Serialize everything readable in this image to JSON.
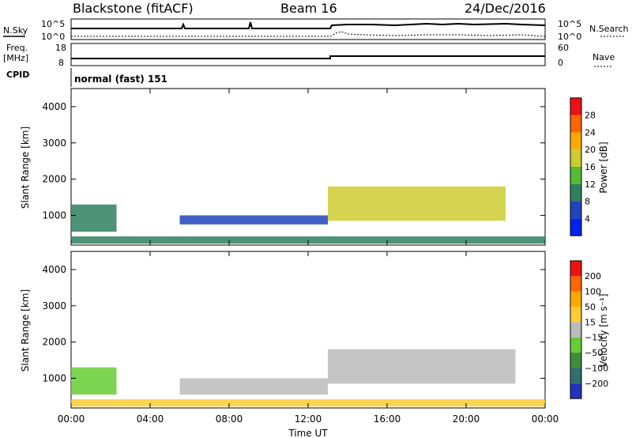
{
  "header": {
    "station": "Blackstone (fitACF)",
    "beam": "Beam 16",
    "date": "24/Dec/2016"
  },
  "panels": {
    "nsky_label": "N.Sky",
    "nsearch_label": "N.Search",
    "freq_label": "Freq.",
    "freq_unit": "[MHz]",
    "nave_label": "Nave",
    "cpid_label": "CPID",
    "cpid_value": "normal (fast) 151",
    "noise_ticks_left": [
      "10^5",
      "10^0"
    ],
    "noise_ticks_right": [
      "10^5",
      "10^0"
    ],
    "freq_ticks": [
      "18",
      "8"
    ],
    "nave_ticks": [
      "60",
      "0"
    ]
  },
  "colors": {
    "power_scale": [
      "#0022ee",
      "#2244bb",
      "#2f7f5f",
      "#55bb33",
      "#cccc33",
      "#ffaa00",
      "#ff6600",
      "#ee1111"
    ],
    "velocity_scale": [
      "#2233bb",
      "#2f6f6f",
      "#3d8d3d",
      "#66cc33",
      "#bbbbbb",
      "#ffcc33",
      "#ffaa00",
      "#ff6600",
      "#ee1111"
    ]
  },
  "chart_data": [
    {
      "type": "heatmap",
      "title": "Power",
      "ylabel": "Slant Range [km]",
      "xlabel": "Time UT",
      "x_ticks": [
        "00:00",
        "04:00",
        "08:00",
        "12:00",
        "16:00",
        "20:00",
        "00:00"
      ],
      "y_ticks": [
        1000,
        2000,
        3000,
        4000
      ],
      "xlim_hours": [
        0,
        24
      ],
      "ylim_km": [
        180,
        4500
      ],
      "colorbar": {
        "label": "Power [dB]",
        "ticks": [
          "4",
          "8",
          "12",
          "16",
          "20",
          "24",
          "28"
        ],
        "range": [
          0,
          30
        ]
      },
      "regions": [
        {
          "t": [
            0,
            2.3
          ],
          "r": [
            550,
            1300
          ],
          "value": 10
        },
        {
          "t": [
            5.5,
            13
          ],
          "r": [
            750,
            1000
          ],
          "value": 6
        },
        {
          "t": [
            13,
            22
          ],
          "r": [
            850,
            1800
          ],
          "value": 18
        },
        {
          "t": [
            0,
            24
          ],
          "r": [
            220,
            420
          ],
          "value": 9
        }
      ]
    },
    {
      "type": "heatmap",
      "title": "Velocity",
      "ylabel": "Slant Range [km]",
      "xlabel": "Time UT",
      "x_ticks": [
        "00:00",
        "04:00",
        "08:00",
        "12:00",
        "16:00",
        "20:00",
        "00:00"
      ],
      "y_ticks": [
        1000,
        2000,
        3000,
        4000
      ],
      "xlim_hours": [
        0,
        24
      ],
      "ylim_km": [
        180,
        4500
      ],
      "colorbar": {
        "label": "Velocity [m s⁻¹]",
        "ticks": [
          "200",
          "100",
          "50",
          "15",
          "−15",
          "−50",
          "−100",
          "−200"
        ],
        "range": [
          -250,
          250
        ]
      },
      "regions": [
        {
          "t": [
            0,
            2.3
          ],
          "r": [
            550,
            1300
          ],
          "value": -40
        },
        {
          "t": [
            5.5,
            13
          ],
          "r": [
            550,
            1000
          ],
          "value": -10
        },
        {
          "t": [
            13,
            22.5
          ],
          "r": [
            850,
            1800
          ],
          "value": 0
        },
        {
          "t": [
            0,
            24
          ],
          "r": [
            220,
            420
          ],
          "value": 30
        }
      ]
    }
  ]
}
